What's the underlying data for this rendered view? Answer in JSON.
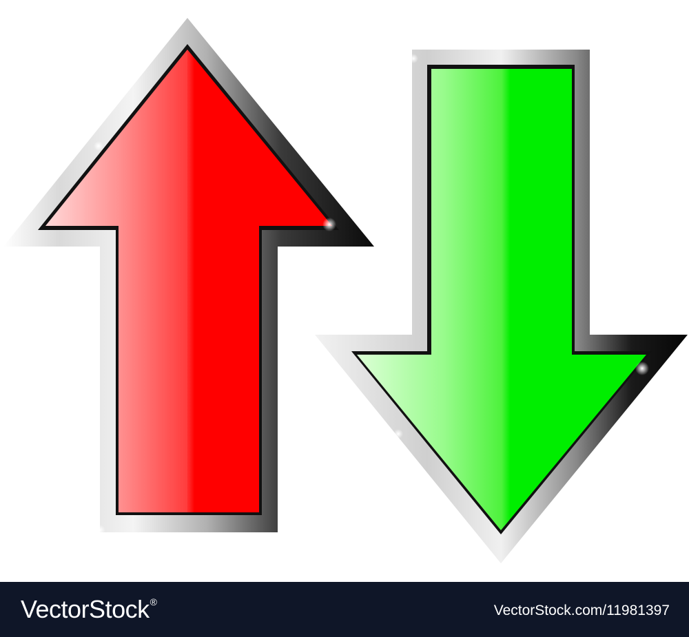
{
  "artwork": {
    "up_arrow_icon": "arrow-up-icon",
    "down_arrow_icon": "arrow-down-icon",
    "up_arrow_color": "#ff0000",
    "down_arrow_color": "#00ee00",
    "frame_color": "#c8c8c8"
  },
  "footer": {
    "brand_name": "VectorStock",
    "brand_mark": "®",
    "stock_id": "VectorStock.com/11981397",
    "background_color": "#0f1628"
  }
}
